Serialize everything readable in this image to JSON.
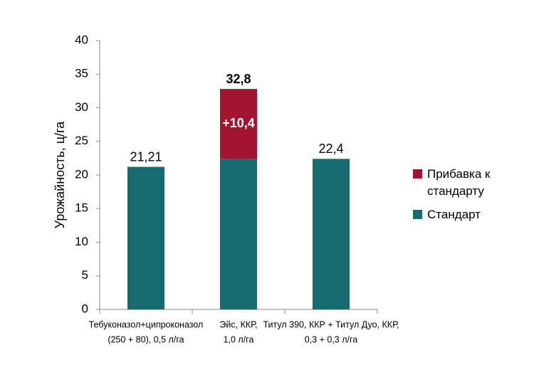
{
  "chart_data": {
    "type": "stacked-bar",
    "y_label": "Урожайность, ц/га",
    "categories": [
      [
        "Тебуконазол+ципроконазол",
        "(250 + 80), 0,5 л/га"
      ],
      [
        "Эйс, ККР,",
        "1,0 л/га"
      ],
      [
        "Титул 390, ККР + Титул Дуо, ККР,",
        "0,3 + 0,3 л/га"
      ]
    ],
    "series": [
      {
        "name": "Стандарт",
        "color": "#176a70",
        "values": [
          21.21,
          22.4,
          22.4
        ],
        "value_labels": [
          "21,21",
          null,
          "22,4"
        ]
      },
      {
        "name": "Прибавка к стандарту",
        "color": "#a31430",
        "values": [
          null,
          10.4,
          null
        ],
        "value_labels": [
          null,
          "+10,4",
          null
        ]
      }
    ],
    "totals": [
      null,
      32.8,
      null
    ],
    "total_labels": [
      null,
      "32,8",
      null
    ],
    "ylim": [
      0,
      40
    ],
    "yticks": [
      0,
      5,
      10,
      15,
      20,
      25,
      30,
      35,
      40
    ]
  }
}
